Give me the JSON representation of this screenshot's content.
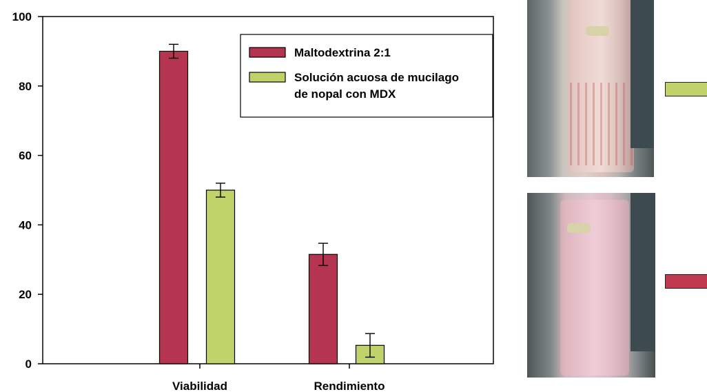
{
  "chart_data": {
    "type": "bar",
    "categories": [
      "Viabilidad",
      "Rendimiento"
    ],
    "series": [
      {
        "name": "Maltodextrina 2:1",
        "values": [
          90,
          31.5
        ],
        "errors": [
          2,
          3.2
        ],
        "color": "#b5344f"
      },
      {
        "name": "Solución acuosa de mucilago de nopal con MDX",
        "values": [
          50,
          5.3
        ],
        "errors": [
          2,
          3.4
        ],
        "color": "#bfd36a"
      }
    ],
    "legend_lines": [
      [
        "Maltodextrina 2:1"
      ],
      [
        "Solución acuosa de mucilago",
        "de nopal con MDX"
      ]
    ],
    "ylim": [
      0,
      100
    ],
    "yticks": [
      0,
      20,
      40,
      60,
      80,
      100
    ],
    "title": "",
    "xlabel": "",
    "ylabel": "",
    "legend_position": "top-right",
    "grid": false
  },
  "photos": [
    {
      "name": "spray-dryer-photo-top",
      "swatch_color": "#bfd36a"
    },
    {
      "name": "spray-dryer-photo-bottom",
      "swatch_color": "#c0394e"
    }
  ]
}
